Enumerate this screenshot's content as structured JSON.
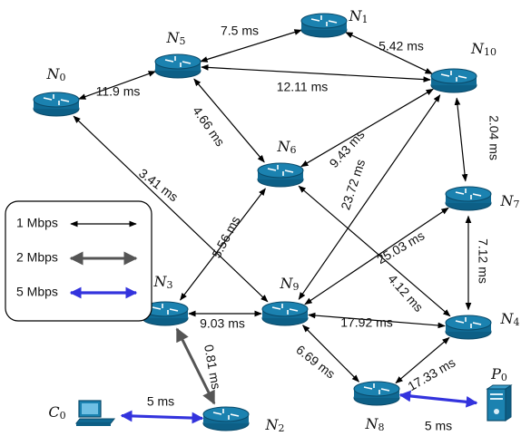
{
  "legend": [
    {
      "label": "1 Mbps",
      "color": "#000000"
    },
    {
      "label": "2 Mbps",
      "color": "#555555"
    },
    {
      "label": "5 Mbps",
      "color": "#3333dd"
    }
  ],
  "nodes": [
    {
      "id": "N0",
      "letter": "N",
      "sub": "0",
      "kind": "router"
    },
    {
      "id": "N1",
      "letter": "N",
      "sub": "1",
      "kind": "router"
    },
    {
      "id": "N2",
      "letter": "N",
      "sub": "2",
      "kind": "router"
    },
    {
      "id": "N3",
      "letter": "N",
      "sub": "3",
      "kind": "router"
    },
    {
      "id": "N4",
      "letter": "N",
      "sub": "4",
      "kind": "router"
    },
    {
      "id": "N5",
      "letter": "N",
      "sub": "5",
      "kind": "router"
    },
    {
      "id": "N6",
      "letter": "N",
      "sub": "6",
      "kind": "router"
    },
    {
      "id": "N7",
      "letter": "N",
      "sub": "7",
      "kind": "router"
    },
    {
      "id": "N8",
      "letter": "N",
      "sub": "8",
      "kind": "router"
    },
    {
      "id": "N9",
      "letter": "N",
      "sub": "9",
      "kind": "router"
    },
    {
      "id": "N10",
      "letter": "N",
      "sub": "10",
      "kind": "router"
    },
    {
      "id": "C0",
      "letter": "C",
      "sub": "0",
      "kind": "computer"
    },
    {
      "id": "P0",
      "letter": "P",
      "sub": "0",
      "kind": "server"
    }
  ],
  "edges": [
    {
      "from": "N0",
      "to": "N5",
      "label": "11.9 ms",
      "bw": 1
    },
    {
      "from": "N5",
      "to": "N1",
      "label": "7.5 ms",
      "bw": 1
    },
    {
      "from": "N1",
      "to": "N10",
      "label": "5.42 ms",
      "bw": 1
    },
    {
      "from": "N5",
      "to": "N10",
      "label": "12.11 ms",
      "bw": 1
    },
    {
      "from": "N5",
      "to": "N6",
      "label": "4.66 ms",
      "bw": 1
    },
    {
      "from": "N6",
      "to": "N10",
      "label": "9.43 ms",
      "bw": 1
    },
    {
      "from": "N10",
      "to": "N7",
      "label": "2.04 ms",
      "bw": 1
    },
    {
      "from": "N0",
      "to": "N9",
      "label": "3.41 ms",
      "bw": 1
    },
    {
      "from": "N6",
      "to": "N3",
      "label": "5.56 ms",
      "bw": 1
    },
    {
      "from": "N9",
      "to": "N10",
      "label": "23.72 ms",
      "bw": 1
    },
    {
      "from": "N9",
      "to": "N7",
      "label": "25.03 ms",
      "bw": 1
    },
    {
      "from": "N6",
      "to": "N4",
      "label": "4.12 ms",
      "bw": 1
    },
    {
      "from": "N7",
      "to": "N4",
      "label": "7.12 ms",
      "bw": 1
    },
    {
      "from": "N3",
      "to": "N9",
      "label": "9.03 ms",
      "bw": 1
    },
    {
      "from": "N9",
      "to": "N4",
      "label": "17.92 ms",
      "bw": 1
    },
    {
      "from": "N3",
      "to": "N2",
      "label": "0.81 ms",
      "bw": 2
    },
    {
      "from": "N9",
      "to": "N8",
      "label": "6.69 ms",
      "bw": 1
    },
    {
      "from": "N8",
      "to": "N4",
      "label": "17.33 ms",
      "bw": 1
    },
    {
      "from": "C0",
      "to": "N2",
      "label": "5 ms",
      "bw": 5
    },
    {
      "from": "N8",
      "to": "P0",
      "label": "5 ms",
      "bw": 5
    }
  ]
}
